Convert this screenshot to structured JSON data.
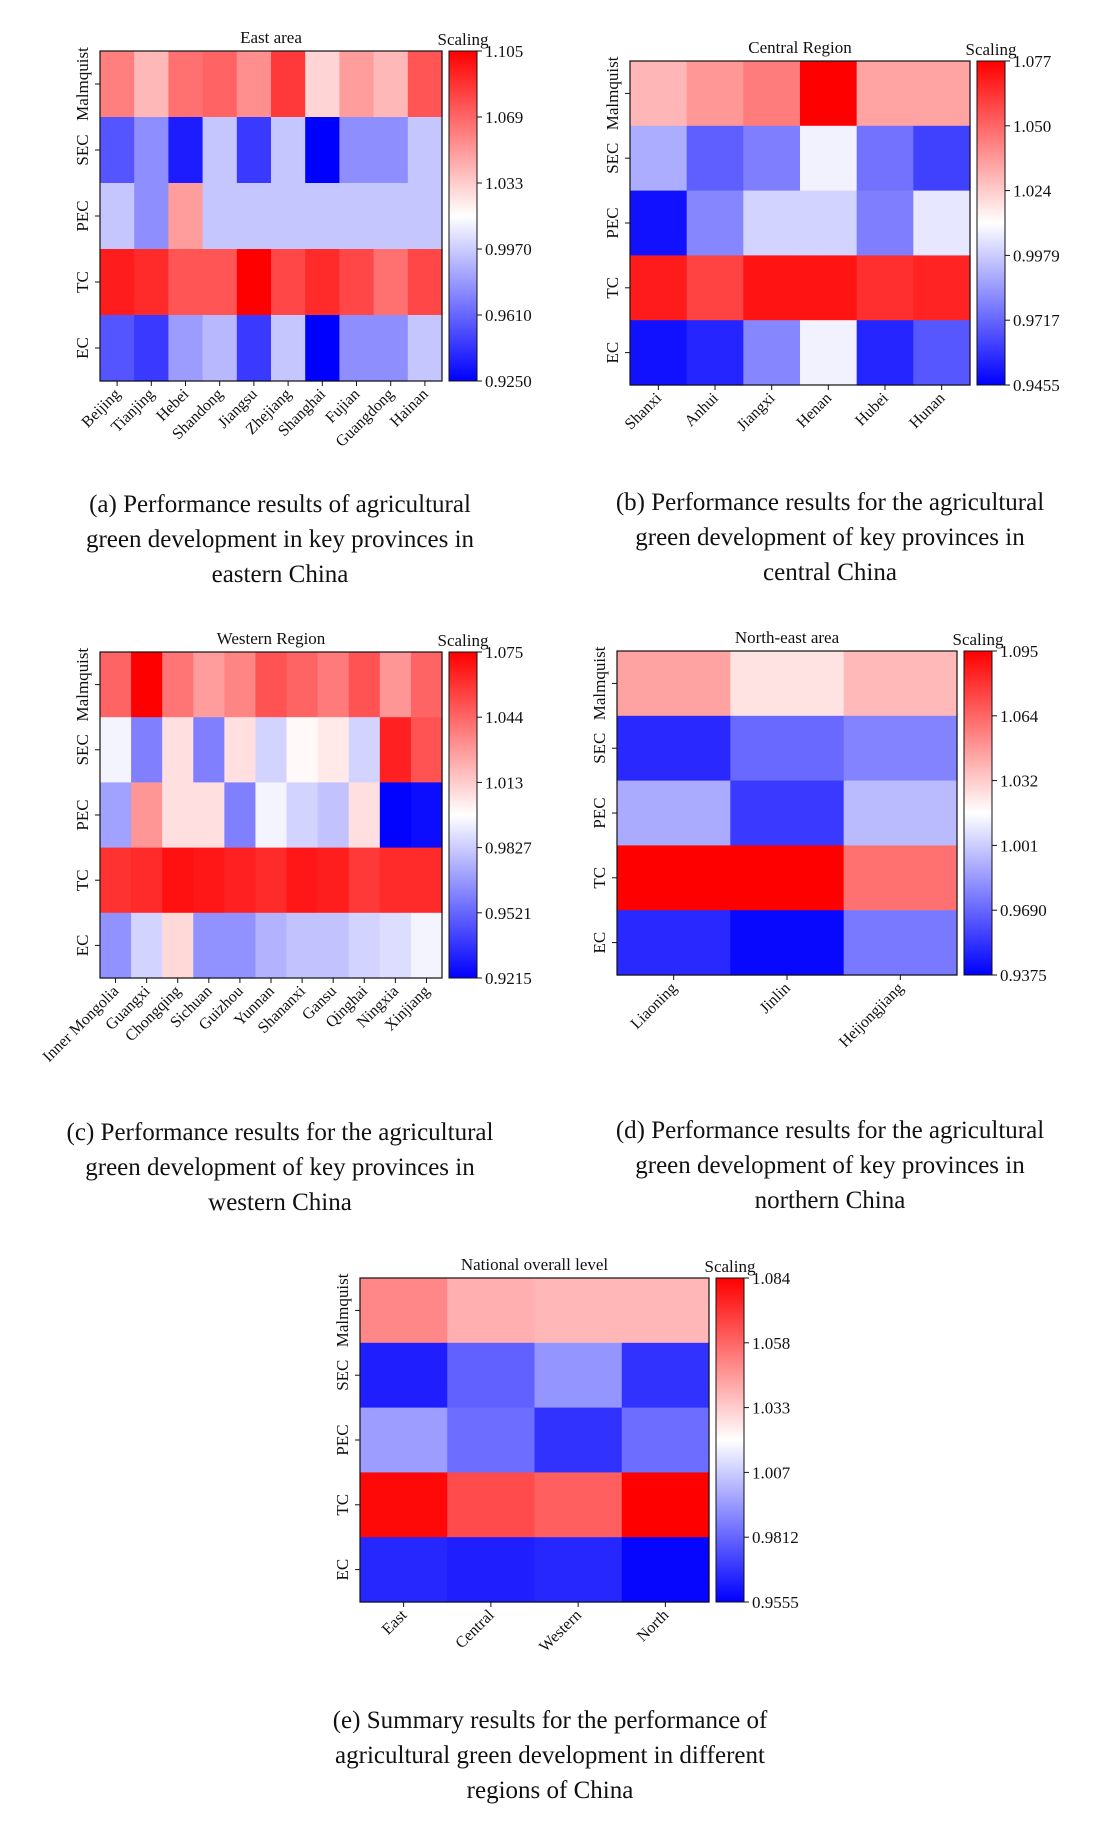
{
  "chart_data": [
    {
      "id": "a",
      "type": "heatmap",
      "title": "East area",
      "legend_title": "Scaling",
      "rows": [
        "Malmquist",
        "SEC",
        "PEC",
        "TC",
        "EC"
      ],
      "columns": [
        "Beijing",
        "Tianjing",
        "Hebei",
        "Shandong",
        "Jiangsu",
        "Zhejiang",
        "Shanghai",
        "Fujian",
        "Guangdong",
        "Hainan"
      ],
      "values": [
        [
          1.06,
          1.04,
          1.065,
          1.07,
          1.055,
          1.085,
          1.03,
          1.05,
          1.04,
          1.075
        ],
        [
          0.955,
          0.975,
          0.935,
          0.995,
          0.945,
          0.995,
          0.925,
          0.975,
          0.975,
          0.995
        ],
        [
          0.995,
          0.975,
          1.05,
          0.995,
          0.995,
          0.995,
          0.995,
          0.995,
          0.995,
          0.995
        ],
        [
          1.095,
          1.09,
          1.075,
          1.075,
          1.105,
          1.08,
          1.09,
          1.08,
          1.065,
          1.08
        ],
        [
          0.955,
          0.945,
          0.98,
          0.99,
          0.945,
          0.995,
          0.925,
          0.975,
          0.975,
          0.995
        ]
      ],
      "vmin": 0.925,
      "vmax": 1.105,
      "colorbar_ticks": [
        "1.105",
        "1.069",
        "1.033",
        "0.9970",
        "0.9610",
        "0.9250"
      ],
      "caption": [
        "(a) Performance results of agricultural",
        "green development in key provinces in",
        "eastern China"
      ]
    },
    {
      "id": "b",
      "type": "heatmap",
      "title": "Central Region",
      "legend_title": "Scaling",
      "rows": [
        "Malmquist",
        "SEC",
        "PEC",
        "TC",
        "EC"
      ],
      "columns": [
        "Shanxi",
        "Anhui",
        "Jiangxi",
        "Henan",
        "Hubei",
        "Hunan"
      ],
      "values": [
        [
          1.03,
          1.038,
          1.045,
          1.077,
          1.035,
          1.035
        ],
        [
          0.99,
          0.97,
          0.978,
          1.008,
          0.975,
          0.962
        ],
        [
          0.95,
          0.98,
          1.0,
          1.0,
          0.978,
          1.005
        ],
        [
          1.07,
          1.06,
          1.072,
          1.072,
          1.065,
          1.068
        ],
        [
          0.95,
          0.955,
          0.98,
          1.008,
          0.955,
          0.968
        ]
      ],
      "vmin": 0.9455,
      "vmax": 1.077,
      "colorbar_ticks": [
        "1.077",
        "1.050",
        "1.024",
        "0.9979",
        "0.9717",
        "0.9455"
      ],
      "caption": [
        "(b) Performance results for the agricultural",
        "green development of key provinces in",
        "central China"
      ]
    },
    {
      "id": "c",
      "type": "heatmap",
      "title": "Western Region",
      "legend_title": "Scaling",
      "rows": [
        "Malmquist",
        "SEC",
        "PEC",
        "TC",
        "EC"
      ],
      "columns": [
        "Inner Mongolia",
        "Guangxi",
        "Chongqing",
        "Sichuan",
        "Guizhou",
        "Yunnan",
        "Shananxi",
        "Gansu",
        "Qinghai",
        "Ningxia",
        "Xinjiang"
      ],
      "values": [
        [
          1.045,
          1.075,
          1.04,
          1.028,
          1.035,
          1.05,
          1.045,
          1.038,
          1.05,
          1.03,
          1.045
        ],
        [
          0.995,
          0.96,
          1.008,
          0.96,
          1.008,
          0.985,
          1.0,
          1.005,
          0.985,
          1.065,
          1.05
        ],
        [
          0.97,
          1.03,
          1.008,
          1.008,
          0.96,
          0.995,
          0.985,
          0.98,
          1.008,
          0.922,
          0.925
        ],
        [
          1.06,
          1.062,
          1.07,
          1.068,
          1.065,
          1.062,
          1.068,
          1.066,
          1.058,
          1.062,
          1.062
        ],
        [
          0.965,
          0.985,
          1.01,
          0.965,
          0.965,
          0.975,
          0.98,
          0.98,
          0.985,
          0.988,
          0.995
        ]
      ],
      "vmin": 0.9215,
      "vmax": 1.075,
      "colorbar_ticks": [
        "1.075",
        "1.044",
        "1.013",
        "0.9827",
        "0.9521",
        "0.9215"
      ],
      "caption": [
        "(c) Performance results for the agricultural",
        "green development of key provinces in",
        "western China"
      ]
    },
    {
      "id": "d",
      "type": "heatmap",
      "title": "North-east area",
      "legend_title": "Scaling",
      "rows": [
        "Malmquist",
        "SEC",
        "PEC",
        "TC",
        "EC"
      ],
      "columns": [
        "Liaoning",
        "Jinlin",
        "Heijongjiang"
      ],
      "values": [
        [
          1.045,
          1.025,
          1.038
        ],
        [
          0.95,
          0.97,
          0.978
        ],
        [
          0.99,
          0.955,
          0.995
        ],
        [
          1.095,
          1.095,
          1.06
        ],
        [
          0.95,
          0.94,
          0.975
        ]
      ],
      "vmin": 0.9375,
      "vmax": 1.095,
      "colorbar_ticks": [
        "1.095",
        "1.064",
        "1.032",
        "1.001",
        "0.9690",
        "0.9375"
      ],
      "caption": [
        "(d) Performance results for the agricultural",
        "green development of key provinces in",
        "northern China"
      ]
    },
    {
      "id": "e",
      "type": "heatmap",
      "title": "National overall level",
      "legend_title": "Scaling",
      "rows": [
        "Malmquist",
        "SEC",
        "PEC",
        "TC",
        "EC"
      ],
      "columns": [
        "East",
        "Central",
        "Western",
        "North"
      ],
      "values": [
        [
          1.05,
          1.04,
          1.038,
          1.038
        ],
        [
          0.963,
          0.98,
          0.993,
          0.968
        ],
        [
          0.995,
          0.983,
          0.968,
          0.983
        ],
        [
          1.082,
          1.065,
          1.06,
          1.084
        ],
        [
          0.965,
          0.963,
          0.965,
          0.957
        ]
      ],
      "vmin": 0.9555,
      "vmax": 1.084,
      "colorbar_ticks": [
        "1.084",
        "1.058",
        "1.033",
        "1.007",
        "0.9812",
        "0.9555"
      ],
      "caption": [
        "(e) Summary results for the performance of",
        "agricultural green development in different",
        "regions of China"
      ]
    }
  ],
  "colors": {
    "low": "#0000ff",
    "mid": "#ffffff",
    "high": "#ff0000"
  }
}
